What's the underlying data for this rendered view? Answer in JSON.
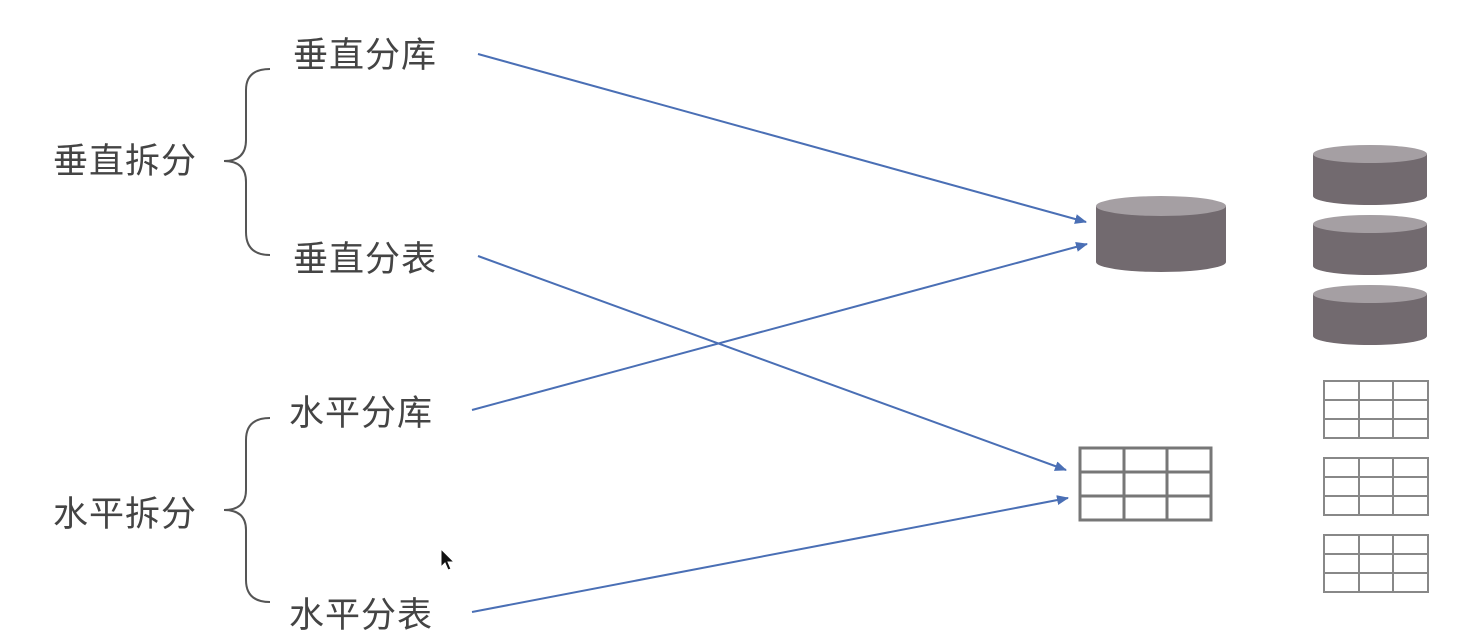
{
  "labels": {
    "vertical_split": "垂直拆分",
    "vertical_db": "垂直分库",
    "vertical_table": "垂直分表",
    "horizontal_split": "水平拆分",
    "horizontal_db": "水平分库",
    "horizontal_table": "水平分表"
  },
  "icons": {
    "database": "database-cylinder-icon",
    "table": "table-grid-icon"
  },
  "colors": {
    "arrow": "#4a6fb5",
    "cylinder_body": "#726a6f",
    "cylinder_top": "#a59fa3",
    "grid_line": "#777777",
    "text": "#444444",
    "brace": "#555555"
  }
}
